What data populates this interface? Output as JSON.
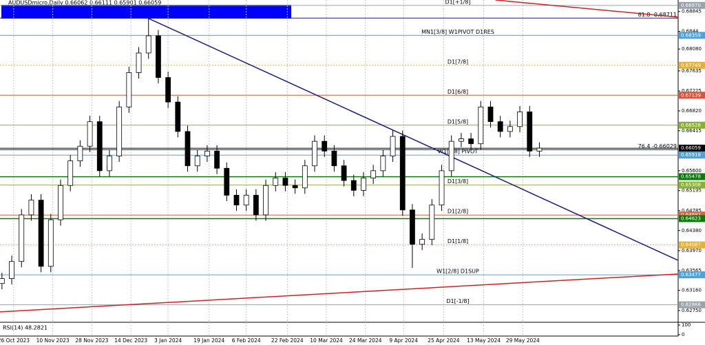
{
  "chart_data": {
    "type": "candlestick",
    "title": "AUDUSDmicro,Daily  0.66062 0.66111 0.65901 0.66059",
    "xlim": [
      -0.2,
      69.2
    ],
    "ylim": [
      0.6251,
      0.6908
    ],
    "xticks": [
      {
        "value": 1.2,
        "label": "26 Oct 2023"
      },
      {
        "value": 5.2,
        "label": "10 Nov 2023"
      },
      {
        "value": 9.2,
        "label": "28 Nov 2023"
      },
      {
        "value": 13.2,
        "label": "14 Dec 2023"
      },
      {
        "value": 17.0,
        "label": "3 Jan 2024"
      },
      {
        "value": 21.2,
        "label": "19 Jan 2024"
      },
      {
        "value": 25.0,
        "label": "6 Feb 2024"
      },
      {
        "value": 29.2,
        "label": "22 Feb 2024"
      },
      {
        "value": 33.2,
        "label": "10 Mar 2024"
      },
      {
        "value": 37.2,
        "label": "24 Mar 2024"
      },
      {
        "value": 41.1,
        "label": "9 Apr 2024"
      },
      {
        "value": 45.2,
        "label": "25 Apr 2024"
      },
      {
        "value": 49.3,
        "label": "13 May 2024"
      },
      {
        "value": 53.3,
        "label": "29 May 2024"
      }
    ],
    "yticks": [
      0.68845,
      0.6844,
      {
        "value": 0.6808,
        "label": "0.68080"
      },
      0.67635,
      0.67225,
      {
        "value": 0.6682,
        "label": "0.66820"
      },
      0.66415,
      {
        "value": 0.656,
        "label": "0.65600"
      },
      0.65195,
      0.64785,
      {
        "value": 0.6438,
        "label": "0.64380"
      },
      {
        "value": 0.6397,
        "label": "0.63970"
      },
      0.63565,
      {
        "value": 0.6316,
        "label": "0.63160"
      },
      {
        "value": 0.6275,
        "label": "0.62750"
      }
    ],
    "open": [
      0.633,
      0.634,
      0.6375,
      0.647,
      0.65,
      0.6365,
      0.646,
      0.653,
      0.658,
      0.661,
      0.666,
      0.656,
      0.659,
      0.669,
      0.676,
      0.68,
      0.6835,
      0.675,
      0.67,
      0.664,
      0.657,
      0.659,
      0.66,
      0.6565,
      0.651,
      0.649,
      0.651,
      0.647,
      0.653,
      0.6545,
      0.653,
      0.6525,
      0.657,
      0.662,
      0.66,
      0.657,
      0.654,
      0.652,
      0.6545,
      0.656,
      0.659,
      0.663,
      0.648,
      0.641,
      0.642,
      0.649,
      0.656,
      0.662,
      0.6625,
      0.6615,
      0.669,
      0.666,
      0.664,
      0.665,
      0.668,
      0.66
    ],
    "high": [
      0.6352,
      0.6387,
      0.6482,
      0.6512,
      0.6512,
      0.6472,
      0.6542,
      0.6592,
      0.6622,
      0.6672,
      0.6672,
      0.6602,
      0.6702,
      0.6772,
      0.6812,
      0.6871,
      0.6847,
      0.6762,
      0.6712,
      0.6652,
      0.6602,
      0.6612,
      0.6612,
      0.6577,
      0.6522,
      0.6522,
      0.6522,
      0.6542,
      0.6557,
      0.6557,
      0.6542,
      0.6582,
      0.6632,
      0.6632,
      0.6612,
      0.6582,
      0.6552,
      0.6557,
      0.6572,
      0.6602,
      0.6642,
      0.6642,
      0.6492,
      0.6432,
      0.6502,
      0.6572,
      0.6632,
      0.6637,
      0.6637,
      0.6702,
      0.6702,
      0.6672,
      0.6662,
      0.6692,
      0.6692,
      0.6618
    ],
    "low": [
      0.6318,
      0.6328,
      0.6363,
      0.6458,
      0.6353,
      0.6353,
      0.6448,
      0.6518,
      0.6568,
      0.6598,
      0.6548,
      0.6548,
      0.6578,
      0.6678,
      0.6748,
      0.6788,
      0.6738,
      0.6688,
      0.6628,
      0.6558,
      0.6558,
      0.6578,
      0.6553,
      0.6498,
      0.6478,
      0.6478,
      0.6458,
      0.6458,
      0.6518,
      0.6518,
      0.6513,
      0.6513,
      0.6558,
      0.6588,
      0.6558,
      0.6528,
      0.6508,
      0.6508,
      0.6533,
      0.6548,
      0.6578,
      0.6468,
      0.6362,
      0.6398,
      0.6408,
      0.6478,
      0.6548,
      0.6608,
      0.6603,
      0.6603,
      0.6648,
      0.6628,
      0.6628,
      0.6638,
      0.6588,
      0.6588
    ],
    "close": [
      0.634,
      0.6375,
      0.647,
      0.65,
      0.6365,
      0.646,
      0.653,
      0.658,
      0.661,
      0.666,
      0.656,
      0.659,
      0.669,
      0.676,
      0.68,
      0.6835,
      0.675,
      0.67,
      0.664,
      0.657,
      0.659,
      0.66,
      0.6565,
      0.651,
      0.649,
      0.651,
      0.647,
      0.653,
      0.6545,
      0.653,
      0.6525,
      0.657,
      0.662,
      0.66,
      0.657,
      0.654,
      0.652,
      0.6545,
      0.656,
      0.659,
      0.663,
      0.648,
      0.641,
      0.642,
      0.649,
      0.656,
      0.662,
      0.6625,
      0.6615,
      0.669,
      0.666,
      0.664,
      0.665,
      0.668,
      0.66,
      0.6606
    ],
    "levels": [
      {
        "value": 0.6897,
        "label": "0.68970",
        "text": "D1[+1/8]",
        "color": "#9aa3ad"
      },
      {
        "value": 0.68711,
        "text": "61.8 -0.68711",
        "color": "#1c1c7a"
      },
      {
        "value": 0.68359,
        "label": "0.68359",
        "text": "MN1[3/8] W1PIVOT D1RES",
        "color": "#4aa3df"
      },
      {
        "value": 0.67749,
        "label": "0.67749",
        "text": "D1[7/8]",
        "color": "#e8b030"
      },
      {
        "value": 0.67139,
        "label": "0.67139",
        "text": "D1[6/8]",
        "color": "#e0503a"
      },
      {
        "value": 0.66528,
        "label": "0.66528",
        "text": "D1[5/8]",
        "color": "#8ab030"
      },
      {
        "value": 0.66029,
        "text": "76.4 -0.66029",
        "color": "#1c1c7a"
      },
      {
        "value": 0.66059,
        "label": "0.66059",
        "color": "#000000"
      },
      {
        "value": 0.65918,
        "label": "0.65918",
        "text": "W1[3/8] PIVOT",
        "color": "#4aa3df"
      },
      {
        "value": 0.65478,
        "label": "0.65478",
        "color": "#0a7a0a"
      },
      {
        "value": 0.65308,
        "label": "0.65308",
        "text": "D1[3/8]",
        "color": "#8ab030"
      },
      {
        "value": 0.64697,
        "label": "0.64697",
        "text": "D1[2/8]",
        "color": "#e0603a"
      },
      {
        "value": 0.64623,
        "label": "0.64623",
        "color": "#0a7a0a"
      },
      {
        "value": 0.64087,
        "label": "0.64087",
        "text": "D1[1/8]",
        "color": "#e8b030"
      },
      {
        "value": 0.63477,
        "label": "0.63477",
        "text": "W1[2/8] D1SUP",
        "color": "#4aa3df"
      },
      {
        "value": 0.62866,
        "label": "0.62866",
        "text": "D1[-1/8]",
        "color": "#9aa3ad"
      }
    ],
    "trendlines": [
      {
        "x": [
          14.93,
          69.15
        ],
        "y": [
          0.68711,
          0.63776
        ],
        "color": "#1c1c7a"
      },
      {
        "x": [
          -0.2,
          69.2
        ],
        "y": [
          0.62722,
          0.63495
        ],
        "color": "#d02020"
      },
      {
        "x": [
          50.5,
          69.2
        ],
        "y": [
          0.6908,
          0.6873
        ],
        "color": "#d02020"
      }
    ],
    "indicator": {
      "title": "RSI(14) 48.2821",
      "ylim": [
        0,
        100
      ],
      "yticks": [
        100,
        0
      ]
    }
  }
}
